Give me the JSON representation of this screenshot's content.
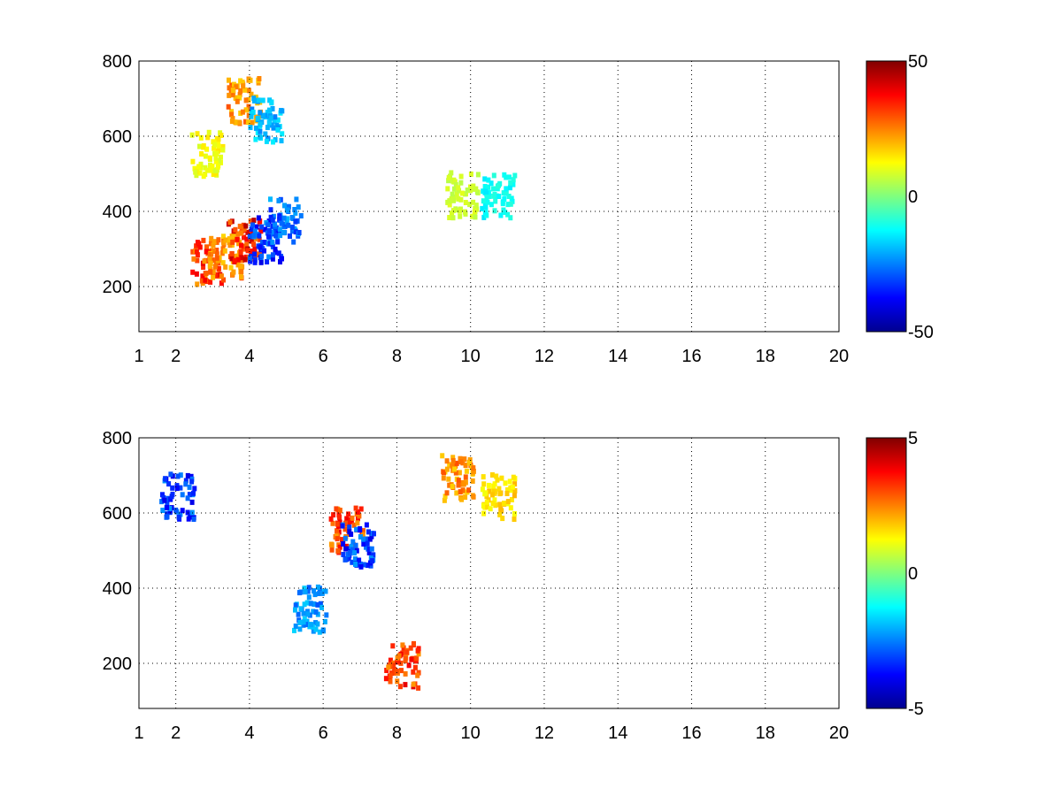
{
  "chart_data": [
    {
      "type": "heatmap",
      "title": "",
      "xlabel": "",
      "ylabel": "",
      "xlim": [
        1,
        20
      ],
      "ylim": [
        80,
        800
      ],
      "x_ticks": [
        "1",
        "2",
        "4",
        "6",
        "8",
        "10",
        "12",
        "14",
        "16",
        "18",
        "20"
      ],
      "x_tick_values": [
        1,
        2,
        4,
        6,
        8,
        10,
        12,
        14,
        16,
        18,
        20
      ],
      "y_ticks": [
        "200",
        "400",
        "600",
        "800"
      ],
      "y_tick_values": [
        200,
        400,
        600,
        800
      ],
      "grid": true,
      "colormap": "jet",
      "clim": [
        -50,
        50
      ],
      "colorbar_ticks": [
        "-50",
        "0",
        "50"
      ],
      "colorbar_tick_values": [
        -50,
        0,
        50
      ],
      "features": [
        {
          "x": 2.8,
          "y": 270,
          "value": 40
        },
        {
          "x": 3.3,
          "y": 290,
          "value": 30
        },
        {
          "x": 3.8,
          "y": 330,
          "value": 45
        },
        {
          "x": 3.8,
          "y": 700,
          "value": 30
        },
        {
          "x": 4.4,
          "y": 330,
          "value": -40
        },
        {
          "x": 4.9,
          "y": 380,
          "value": -35
        },
        {
          "x": 4.4,
          "y": 650,
          "value": -25
        },
        {
          "x": 2.8,
          "y": 560,
          "value": 15
        },
        {
          "x": 10.7,
          "y": 450,
          "value": -15
        },
        {
          "x": 9.7,
          "y": 450,
          "value": 10
        }
      ]
    },
    {
      "type": "heatmap",
      "title": "",
      "xlabel": "",
      "ylabel": "",
      "xlim": [
        1,
        20
      ],
      "ylim": [
        80,
        800
      ],
      "x_ticks": [
        "1",
        "2",
        "4",
        "6",
        "8",
        "10",
        "12",
        "14",
        "16",
        "18",
        "20"
      ],
      "x_tick_values": [
        1,
        2,
        4,
        6,
        8,
        10,
        12,
        14,
        16,
        18,
        20
      ],
      "y_ticks": [
        "200",
        "400",
        "600",
        "800"
      ],
      "y_tick_values": [
        200,
        400,
        600,
        800
      ],
      "grid": true,
      "colormap": "jet",
      "clim": [
        -5,
        5
      ],
      "colorbar_ticks": [
        "-5",
        "0",
        "5"
      ],
      "colorbar_tick_values": [
        -5,
        0,
        5
      ],
      "features": [
        {
          "x": 2.0,
          "y": 650,
          "value": -4
        },
        {
          "x": 6.6,
          "y": 560,
          "value": 4
        },
        {
          "x": 6.9,
          "y": 520,
          "value": -4
        },
        {
          "x": 9.6,
          "y": 700,
          "value": 3
        },
        {
          "x": 10.7,
          "y": 650,
          "value": 2
        },
        {
          "x": 8.1,
          "y": 200,
          "value": 4
        },
        {
          "x": 5.6,
          "y": 350,
          "value": -3
        }
      ]
    }
  ]
}
